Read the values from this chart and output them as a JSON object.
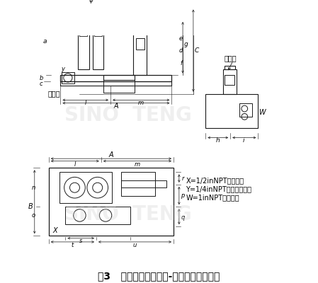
{
  "title": "图3   电子式爆管监测气-液联动装置外形图",
  "title_fontsize": 10,
  "background_color": "#ffffff",
  "watermark_text": "SINO TENG",
  "annotations": {
    "legend_x": "X=1/2inNPT气源接口",
    "legend_y": "Y=1/4inNPT紧急气源接口",
    "legend_w": "W=1inNPT电气接口",
    "label_diaozhuangdian": "吊装点",
    "label_paiqikou": "排气口"
  },
  "line_color": "#1a1a1a"
}
